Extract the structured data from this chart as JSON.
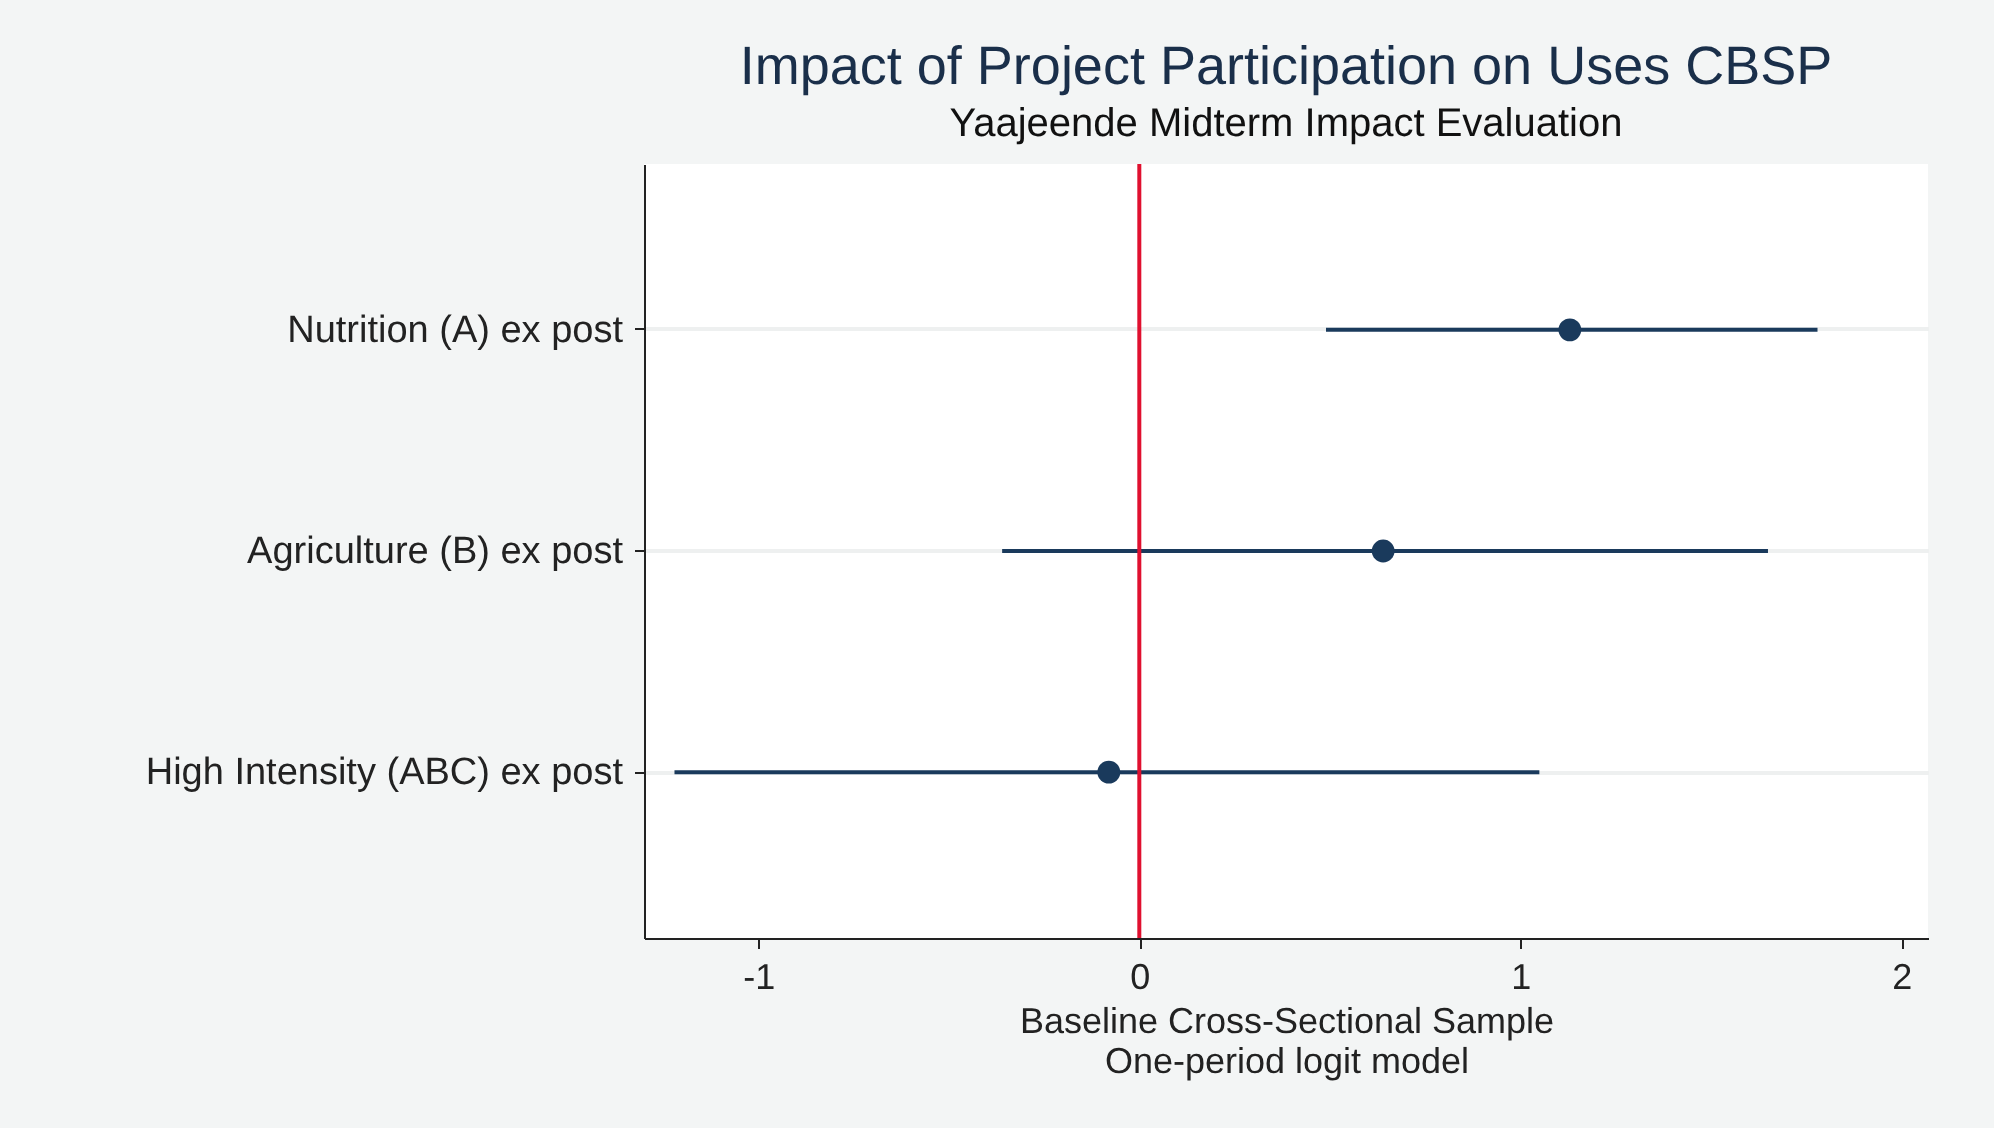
{
  "chart_data": {
    "type": "scatter",
    "title": "Impact of Project Participation on Uses CBSP",
    "subtitle": "Yaajeende Midterm Impact Evaluation",
    "xlabel": "Baseline Cross-Sectional Sample\nOne-period logit model",
    "orientation": "horizontal",
    "categories": [
      "Nutrition (A) ex post",
      "Agriculture (B) ex post",
      "High Intensity (ABC) ex post"
    ],
    "series": [
      {
        "color": "#1a3a5c",
        "values": [
          1.13,
          0.64,
          -0.08
        ],
        "errors": [
          [
            0.49,
            1.78
          ],
          [
            -0.36,
            1.65
          ],
          [
            -1.22,
            1.05
          ]
        ]
      }
    ],
    "xlim": [
      -1.3,
      2.07
    ],
    "xticks": [
      {
        "value": -1,
        "label": "-1"
      },
      0,
      1,
      2
    ],
    "grid": "y",
    "marker": "circle",
    "ref_lines": [
      {
        "axis": "x",
        "value": 0,
        "color": "#e0102f"
      }
    ]
  }
}
